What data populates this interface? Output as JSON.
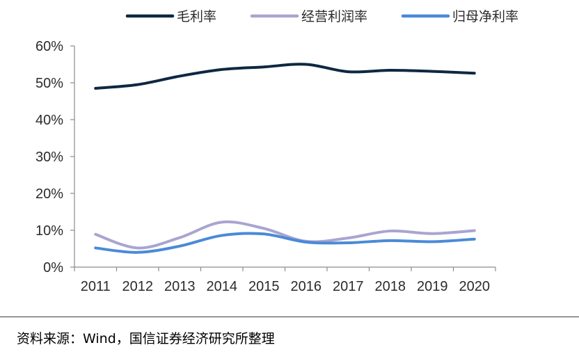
{
  "chart_data": {
    "type": "line",
    "categories": [
      "2011",
      "2012",
      "2013",
      "2014",
      "2015",
      "2016",
      "2017",
      "2018",
      "2019",
      "2020"
    ],
    "ylim": [
      0,
      60
    ],
    "yticks": [
      0,
      10,
      20,
      30,
      40,
      50,
      60
    ],
    "ytick_labels": [
      "0%",
      "10%",
      "20%",
      "30%",
      "40%",
      "50%",
      "60%"
    ],
    "grid": false,
    "legend_position": "top",
    "series": [
      {
        "name": "毛利率",
        "color": "#0e2841",
        "values": [
          48.5,
          49.5,
          51.8,
          53.6,
          54.3,
          55.0,
          53.0,
          53.4,
          53.1,
          52.6
        ]
      },
      {
        "name": "经营利润率",
        "color": "#a9a5d0",
        "values": [
          8.9,
          5.2,
          8.0,
          12.2,
          10.5,
          7.0,
          7.9,
          9.8,
          9.1,
          9.9
        ]
      },
      {
        "name": "归母净利率",
        "color": "#4a8ad8",
        "values": [
          5.2,
          4.0,
          5.7,
          8.6,
          9.0,
          6.8,
          6.6,
          7.2,
          6.9,
          7.6
        ]
      }
    ]
  },
  "source": "资料来源：Wind，国信证券经济研究所整理"
}
